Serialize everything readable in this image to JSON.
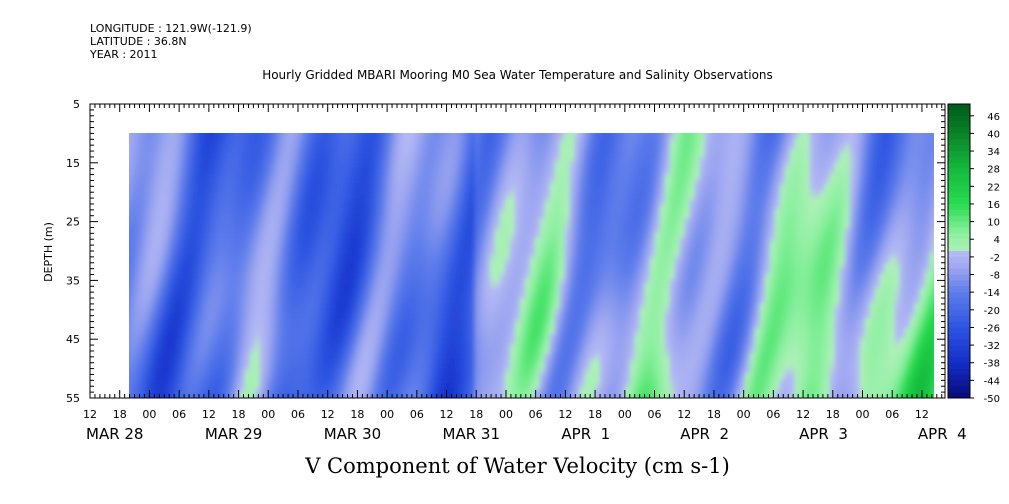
{
  "header": {
    "longitude": "LONGITUDE : 121.9W(-121.9)",
    "latitude": "LATITUDE : 36.8N",
    "year": "YEAR : 2011"
  },
  "chart_data": {
    "type": "heatmap",
    "title": "Hourly Gridded MBARI Mooring M0 Sea Water Temperature and Salinity Observations",
    "xlabel": "V Component of Water Velocity (cm s-1)",
    "ylabel": "DEPTH (m)",
    "y_range": [
      5,
      55
    ],
    "y_inverted": true,
    "y_ticks": [
      "5",
      "15",
      "25",
      "35",
      "45",
      "55"
    ],
    "x_hour_ticks": [
      "12",
      "18",
      "00",
      "06",
      "12",
      "18",
      "00",
      "06",
      "12",
      "18",
      "00",
      "06",
      "12",
      "18",
      "00",
      "06",
      "12",
      "18",
      "00",
      "06",
      "12",
      "18",
      "00",
      "06",
      "12",
      "18",
      "00",
      "06",
      "12"
    ],
    "x_day_labels": [
      "MAR 28",
      "MAR 29",
      "MAR 30",
      "MAR 31",
      "APR  1",
      "APR  2",
      "APR  3",
      "APR  4"
    ],
    "data_extent": {
      "start": "2011-03-28T18:00",
      "end": "2011-04-04T15:00",
      "depth_min": 10,
      "depth_max": 55
    },
    "colorbar_levels": [
      "46",
      "40",
      "34",
      "28",
      "22",
      "16",
      "10",
      "4",
      "-2",
      "-8",
      "-14",
      "-20",
      "-26",
      "-32",
      "-38",
      "-44",
      "-50"
    ],
    "colorbar_range": [
      -50,
      50
    ],
    "colors": {
      "negative_strong": "#1d44d6",
      "negative_mid": "#4f74e4",
      "negative_weak": "#9aa8ec",
      "positive_weak": "#8ff0a8",
      "positive_strong": "#21d84a"
    },
    "field_description": [
      {
        "start": "2011-03-28T18:00",
        "end": "2011-03-31T18:00",
        "depth": "10-55",
        "v_range": [
          -30,
          4
        ]
      },
      {
        "start": "2011-03-31T18:00",
        "end": "2011-04-04T15:00",
        "depth": "10-55",
        "v_range": [
          -22,
          16
        ]
      }
    ]
  }
}
